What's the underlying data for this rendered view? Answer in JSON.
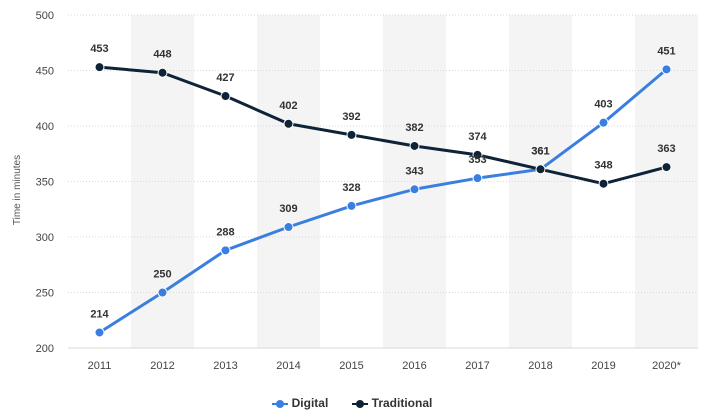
{
  "chart_data": {
    "type": "line",
    "title": "",
    "xlabel": "",
    "ylabel": "Time in minutes",
    "categories": [
      "2011",
      "2012",
      "2013",
      "2014",
      "2015",
      "2016",
      "2017",
      "2018",
      "2019",
      "2020*"
    ],
    "ylim": [
      200,
      500
    ],
    "yticks": [
      200,
      250,
      300,
      350,
      400,
      450,
      500
    ],
    "grid": true,
    "legend_position": "bottom-center",
    "series": [
      {
        "name": "Digital",
        "color": "#3a7fe0",
        "values": [
          214,
          250,
          288,
          309,
          328,
          343,
          353,
          361,
          403,
          451
        ],
        "labels": [
          "214",
          "250",
          "288",
          "309",
          "328",
          "343",
          "353",
          "361",
          "403",
          "451"
        ]
      },
      {
        "name": "Traditional",
        "color": "#0e2337",
        "values": [
          453,
          448,
          427,
          402,
          392,
          382,
          374,
          361,
          348,
          363
        ],
        "labels": [
          "453",
          "448",
          "427",
          "402",
          "392",
          "382",
          "374",
          "361",
          "348",
          "363"
        ]
      }
    ]
  }
}
